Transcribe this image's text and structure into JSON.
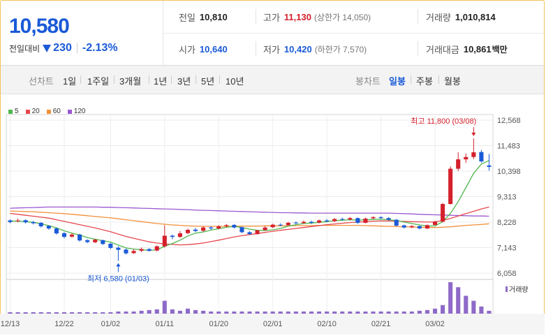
{
  "quote": {
    "price": "10,580",
    "change_label": "전일대비",
    "change_value": "230",
    "change_pct": "-2.13%",
    "direction_color": "#1a5ad7"
  },
  "stats": {
    "prev_close": {
      "label": "전일",
      "value": "10,810"
    },
    "high": {
      "label": "고가",
      "value": "11,130",
      "note": "(상한가 14,050)"
    },
    "volume": {
      "label": "거래량",
      "value": "1,010,814"
    },
    "open": {
      "label": "시가",
      "value": "10,640"
    },
    "low": {
      "label": "저가",
      "value": "10,420",
      "note": "(하한가 7,570)"
    },
    "amount": {
      "label": "거래대금",
      "value": "10,861",
      "unit": "백만"
    }
  },
  "tabs": {
    "line_label": "선차트",
    "line_periods": [
      "1일",
      "1주일",
      "3개월",
      "1년",
      "3년",
      "5년",
      "10년"
    ],
    "candle_label": "봉차트",
    "candle_periods": [
      "일봉",
      "주봉",
      "월봉"
    ],
    "active_candle": "일봉"
  },
  "chart_data": {
    "type": "candlestick",
    "legend": [
      {
        "name": "5",
        "color": "#4fb64c"
      },
      {
        "name": "20",
        "color": "#e5484d"
      },
      {
        "name": "60",
        "color": "#f3913b"
      },
      {
        "name": "120",
        "color": "#9b59d0"
      }
    ],
    "y_ticks": [
      12568,
      11483,
      10398,
      9313,
      8228,
      7143,
      6058
    ],
    "ylim": [
      6058,
      12568
    ],
    "x_ticks": [
      "12/13",
      "12/22",
      "01/02",
      "01/11",
      "01/20",
      "02/01",
      "02/10",
      "02/21",
      "03/02"
    ],
    "x_tick_index": [
      0,
      7,
      13,
      20,
      27,
      34,
      41,
      48,
      55
    ],
    "high_annotation": "최고 11,800 (03/08)",
    "low_annotation": "최저 6,580 (01/03)",
    "high_index": 60,
    "low_index": 14,
    "volume_label": "거래량",
    "candles": [
      [
        8300,
        8230,
        8350,
        8180
      ],
      [
        8270,
        8300,
        8380,
        8220
      ],
      [
        8310,
        8220,
        8350,
        8170
      ],
      [
        8230,
        8180,
        8280,
        8130
      ],
      [
        8200,
        8050,
        8230,
        8000
      ],
      [
        8070,
        7960,
        8100,
        7900
      ],
      [
        7960,
        7750,
        8000,
        7700
      ],
      [
        7760,
        7600,
        7800,
        7540
      ],
      [
        7610,
        7700,
        7760,
        7560
      ],
      [
        7700,
        7450,
        7730,
        7400
      ],
      [
        7460,
        7380,
        7500,
        7330
      ],
      [
        7370,
        7480,
        7520,
        7340
      ],
      [
        7460,
        7300,
        7480,
        7250
      ],
      [
        7310,
        7130,
        7350,
        7080
      ],
      [
        7140,
        7050,
        7200,
        6580
      ],
      [
        7060,
        6900,
        7110,
        6850
      ],
      [
        6910,
        7000,
        7080,
        6880
      ],
      [
        7010,
        7080,
        7150,
        6950
      ],
      [
        7080,
        7010,
        7120,
        6970
      ],
      [
        7020,
        7200,
        7240,
        6980
      ],
      [
        7200,
        7650,
        8100,
        7150
      ],
      [
        7650,
        7600,
        7700,
        7500
      ],
      [
        7600,
        7750,
        7850,
        7550
      ],
      [
        7760,
        7900,
        7950,
        7720
      ],
      [
        7910,
        7850,
        7980,
        7800
      ],
      [
        7860,
        8000,
        8050,
        7820
      ],
      [
        8000,
        7960,
        8060,
        7900
      ],
      [
        7960,
        8050,
        8100,
        7920
      ],
      [
        8060,
        8100,
        8150,
        8000
      ],
      [
        8110,
        8000,
        8150,
        7960
      ],
      [
        8010,
        7800,
        8040,
        7760
      ],
      [
        7800,
        7720,
        7840,
        7680
      ],
      [
        7720,
        7880,
        7900,
        7700
      ],
      [
        7890,
        8000,
        8060,
        7860
      ],
      [
        8010,
        8120,
        8160,
        7980
      ],
      [
        8120,
        8100,
        8180,
        8050
      ],
      [
        8100,
        8200,
        8240,
        8060
      ],
      [
        8210,
        8180,
        8260,
        8140
      ],
      [
        8190,
        8240,
        8300,
        8150
      ],
      [
        8240,
        8200,
        8290,
        8150
      ],
      [
        8210,
        8300,
        8340,
        8170
      ],
      [
        8300,
        8260,
        8360,
        8220
      ],
      [
        8270,
        8360,
        8400,
        8230
      ],
      [
        8360,
        8330,
        8420,
        8290
      ],
      [
        8340,
        8400,
        8450,
        8300
      ],
      [
        8400,
        8200,
        8420,
        8150
      ],
      [
        8200,
        8380,
        8420,
        8180
      ],
      [
        8390,
        8440,
        8480,
        8360
      ],
      [
        8440,
        8400,
        8480,
        8360
      ],
      [
        8400,
        8330,
        8440,
        8300
      ],
      [
        8330,
        8080,
        8360,
        8040
      ],
      [
        8090,
        8000,
        8120,
        7960
      ],
      [
        8010,
        8060,
        8100,
        7970
      ],
      [
        8060,
        7960,
        8080,
        7920
      ],
      [
        7960,
        8100,
        8130,
        7930
      ],
      [
        8110,
        8250,
        8280,
        8080
      ],
      [
        8250,
        9000,
        9050,
        8220
      ],
      [
        9000,
        10500,
        10600,
        8980
      ],
      [
        10500,
        10900,
        11200,
        10400
      ],
      [
        10900,
        11000,
        11150,
        10750
      ],
      [
        11000,
        11200,
        11800,
        10900
      ],
      [
        11210,
        10810,
        11300,
        10760
      ],
      [
        10640,
        10580,
        11130,
        10420
      ]
    ],
    "ma5": [
      8280,
      8270,
      8250,
      8220,
      8160,
      8080,
      7980,
      7860,
      7760,
      7680,
      7570,
      7500,
      7440,
      7380,
      7250,
      7130,
      7080,
      7060,
      7020,
      7050,
      7200,
      7320,
      7460,
      7640,
      7760,
      7810,
      7890,
      7950,
      8010,
      8050,
      8000,
      7930,
      7880,
      7870,
      7900,
      7960,
      8060,
      8120,
      8170,
      8190,
      8220,
      8250,
      8290,
      8310,
      8330,
      8310,
      8330,
      8340,
      8350,
      8330,
      8300,
      8230,
      8170,
      8110,
      8060,
      8070,
      8250,
      8600,
      9100,
      9700,
      10300,
      10700,
      10850
    ],
    "ma20": [
      8600,
      8560,
      8520,
      8480,
      8440,
      8400,
      8330,
      8260,
      8190,
      8120,
      8050,
      7980,
      7900,
      7820,
      7720,
      7620,
      7540,
      7460,
      7390,
      7340,
      7300,
      7280,
      7260,
      7270,
      7300,
      7340,
      7400,
      7460,
      7530,
      7600,
      7650,
      7700,
      7740,
      7790,
      7840,
      7880,
      7920,
      7960,
      8000,
      8040,
      8080,
      8120,
      8150,
      8180,
      8210,
      8230,
      8250,
      8270,
      8280,
      8280,
      8270,
      8260,
      8250,
      8240,
      8230,
      8240,
      8300,
      8390,
      8490,
      8590,
      8690,
      8790,
      8870
    ],
    "ma60": [
      8700,
      8690,
      8680,
      8670,
      8650,
      8630,
      8610,
      8590,
      8560,
      8530,
      8500,
      8470,
      8440,
      8410,
      8370,
      8330,
      8290,
      8250,
      8210,
      8170,
      8140,
      8110,
      8090,
      8070,
      8060,
      8050,
      8050,
      8050,
      8050,
      8050,
      8060,
      8060,
      8060,
      8070,
      8070,
      8070,
      8070,
      8080,
      8080,
      8080,
      8090,
      8090,
      8090,
      8090,
      8090,
      8090,
      8080,
      8070,
      8060,
      8050,
      8040,
      8030,
      8020,
      8010,
      8000,
      8000,
      8010,
      8030,
      8060,
      8090,
      8110,
      8130,
      8160
    ],
    "ma120": [
      8820,
      8830,
      8840,
      8850,
      8860,
      8870,
      8870,
      8870,
      8870,
      8870,
      8870,
      8870,
      8860,
      8860,
      8850,
      8840,
      8830,
      8820,
      8810,
      8800,
      8790,
      8780,
      8770,
      8760,
      8740,
      8730,
      8720,
      8710,
      8700,
      8690,
      8680,
      8670,
      8660,
      8650,
      8640,
      8630,
      8630,
      8620,
      8620,
      8610,
      8610,
      8610,
      8610,
      8610,
      8610,
      8610,
      8610,
      8610,
      8610,
      8610,
      8600,
      8590,
      8580,
      8560,
      8550,
      8540,
      8530,
      8520,
      8510,
      8500,
      8490,
      8490,
      8480
    ],
    "volume": [
      2,
      2,
      2,
      2,
      2,
      2,
      2,
      2,
      2,
      2,
      2,
      2,
      2,
      2,
      3,
      3,
      3,
      4,
      5,
      6,
      18,
      6,
      4,
      7,
      5,
      4,
      3,
      3,
      3,
      3,
      3,
      3,
      3,
      3,
      3,
      3,
      3,
      3,
      3,
      3,
      3,
      3,
      3,
      3,
      3,
      3,
      3,
      3,
      3,
      3,
      3,
      3,
      3,
      4,
      5,
      7,
      12,
      44,
      37,
      25,
      18,
      10,
      4
    ]
  }
}
